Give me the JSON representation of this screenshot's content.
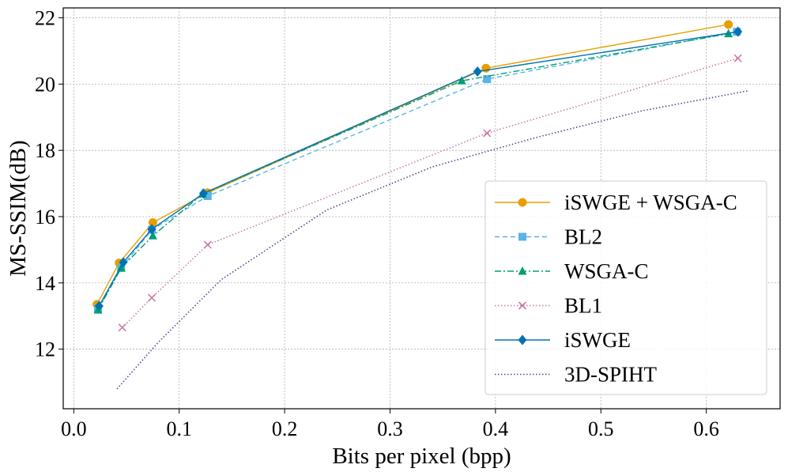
{
  "chart_data": {
    "type": "line",
    "title": "",
    "xlabel": "Bits per pixel (bpp)",
    "ylabel": "MS-SSIM(dB)",
    "xlim": [
      -0.01,
      0.67
    ],
    "ylim": [
      10.2,
      22.3
    ],
    "xticks": [
      0.0,
      0.1,
      0.2,
      0.3,
      0.4,
      0.5,
      0.6
    ],
    "xtick_labels": [
      "0.0",
      "0.1",
      "0.2",
      "0.3",
      "0.4",
      "0.5",
      "0.6"
    ],
    "yticks": [
      12,
      14,
      16,
      18,
      20,
      22
    ],
    "ytick_labels": [
      "12",
      "14",
      "16",
      "18",
      "20",
      "22"
    ],
    "grid": true,
    "legend_position": "lower-right",
    "series": [
      {
        "name": "iSWGE + WSGA-C",
        "color": "#E69F00",
        "dash": "solid",
        "marker": "circle",
        "x": [
          0.022,
          0.043,
          0.075,
          0.127,
          0.391,
          0.621
        ],
        "y": [
          13.35,
          14.6,
          15.82,
          16.72,
          20.48,
          21.8
        ]
      },
      {
        "name": "BL2",
        "color": "#56B4E9",
        "dash": "dashed",
        "marker": "square",
        "x": [
          0.023,
          0.045,
          0.074,
          0.127,
          0.392,
          0.629
        ],
        "y": [
          13.22,
          14.45,
          15.6,
          16.62,
          20.15,
          21.58
        ]
      },
      {
        "name": "WSGA-C",
        "color": "#009E73",
        "dash": "dashdot",
        "marker": "triangle",
        "x": [
          0.023,
          0.045,
          0.075,
          0.122,
          0.368,
          0.621
        ],
        "y": [
          13.18,
          14.45,
          15.42,
          16.68,
          20.1,
          21.52
        ]
      },
      {
        "name": "BL1",
        "color": "#CC79A7",
        "dash": "dotted",
        "marker": "x",
        "x": [
          0.046,
          0.074,
          0.127,
          0.392,
          0.63
        ],
        "y": [
          12.65,
          13.55,
          15.15,
          18.52,
          20.78
        ]
      },
      {
        "name": "iSWGE",
        "color": "#0072B2",
        "dash": "solid",
        "marker": "diamond",
        "x": [
          0.024,
          0.047,
          0.074,
          0.123,
          0.383,
          0.63
        ],
        "y": [
          13.3,
          14.62,
          15.62,
          16.7,
          20.38,
          21.58
        ]
      },
      {
        "name": "3D-SPIHT",
        "color": "#4B4B8F",
        "dash": "dotted",
        "marker": "none",
        "x": [
          0.041,
          0.08,
          0.14,
          0.24,
          0.34,
          0.44,
          0.54,
          0.64
        ],
        "y": [
          10.8,
          12.2,
          14.1,
          16.2,
          17.5,
          18.4,
          19.2,
          19.8
        ]
      }
    ]
  }
}
